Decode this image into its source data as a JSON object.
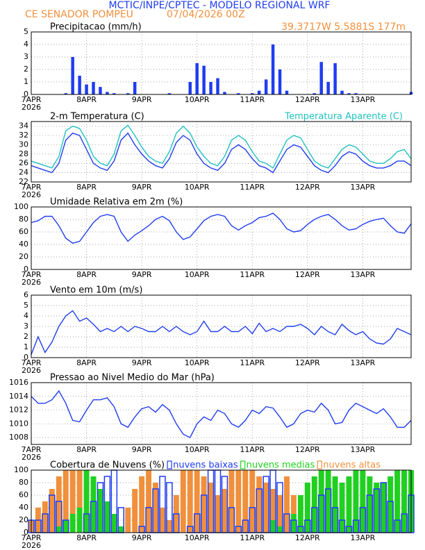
{
  "header": {
    "title": "MCTIC/INPE/CPTEC - MODELO REGIONAL WRF",
    "station": "CE SENADOR POMPEU",
    "run": "07/04/2026 00Z",
    "coords": "39.3717W 5.5881S 177m"
  },
  "time": {
    "x": [
      0,
      3,
      6,
      9,
      12,
      15,
      18,
      21,
      24,
      27,
      30,
      33,
      36,
      39,
      42,
      45,
      48,
      51,
      54,
      57,
      60,
      63,
      66,
      69,
      72,
      75,
      78,
      81,
      84,
      87,
      90,
      93,
      96,
      99,
      102,
      105,
      108,
      111,
      114,
      117,
      120,
      123,
      126,
      129,
      132,
      135,
      138,
      141,
      144,
      147,
      150,
      153,
      156,
      159,
      162,
      165
    ],
    "xlim": [
      0,
      165
    ],
    "xticks": [
      {
        "value": 0,
        "label": "7APR"
      },
      {
        "value": 24,
        "label": "8APR"
      },
      {
        "value": 48,
        "label": "9APR"
      },
      {
        "value": 72,
        "label": "10APR"
      },
      {
        "value": 96,
        "label": "11APR"
      },
      {
        "value": 120,
        "label": "12APR"
      },
      {
        "value": 144,
        "label": "13APR"
      }
    ],
    "year": "2026"
  },
  "chart_data": [
    {
      "type": "bar",
      "title": "Precipitacao (mm/h)",
      "color": "#1f3cf0",
      "ylim": [
        0,
        5
      ],
      "yticks": [
        0,
        1,
        2,
        3,
        4,
        5
      ],
      "grid": true,
      "values": [
        0,
        0,
        0,
        0,
        0,
        0.1,
        3.0,
        1.5,
        0.8,
        1.0,
        0.6,
        0.2,
        0.1,
        0,
        0.1,
        1.0,
        0,
        0,
        0,
        0,
        0.1,
        0,
        0,
        1.0,
        2.5,
        2.3,
        1.0,
        1.3,
        0.2,
        0,
        0.1,
        0,
        0.1,
        0.3,
        1.2,
        4.0,
        2.0,
        0.3,
        0,
        0,
        0,
        0.1,
        2.6,
        1.0,
        2.5,
        0.3,
        0.1,
        0.1,
        0,
        0,
        0,
        0,
        0,
        0,
        0,
        0.2
      ]
    },
    {
      "type": "line",
      "title": "2-m Temperatura (C)",
      "ylim": [
        22,
        35
      ],
      "yticks": [
        22,
        24,
        26,
        28,
        30,
        32,
        34
      ],
      "grid": true,
      "series": [
        {
          "color": "#1f3cf0",
          "values": [
            25.5,
            25,
            24.5,
            24,
            26,
            31,
            32.5,
            32,
            29,
            26,
            25,
            24.5,
            26.5,
            31,
            32.5,
            30,
            28,
            26.5,
            25.5,
            25,
            27,
            30.5,
            32,
            31,
            28,
            26,
            25,
            24.5,
            26,
            29,
            30,
            29,
            27,
            25.5,
            25,
            24,
            26.5,
            29,
            30,
            29.5,
            27.5,
            25.5,
            24.5,
            24,
            25.5,
            27.5,
            28.5,
            28,
            26.5,
            25.5,
            25,
            25,
            25.5,
            26.5,
            26.5,
            25.5
          ]
        },
        {
          "name": "Temperatura Aparente (C)",
          "color": "#20c0c0",
          "values": [
            26.5,
            26,
            25.5,
            25,
            27.5,
            33,
            34,
            33.5,
            31,
            27.5,
            26,
            25.5,
            28,
            33,
            34.2,
            32,
            29.5,
            27.5,
            26.5,
            26,
            28.5,
            32.5,
            34,
            32.5,
            29.5,
            27.5,
            26,
            25.5,
            27.5,
            31,
            32,
            31,
            28.5,
            26.5,
            26,
            25,
            28,
            31,
            32,
            31.5,
            29,
            26.5,
            25.5,
            25,
            27,
            29,
            30,
            29.5,
            28,
            26.5,
            26,
            26,
            27,
            28.5,
            29,
            27
          ]
        }
      ]
    },
    {
      "type": "line",
      "title": "Umidade Relativa em 2m (%)",
      "ylim": [
        0,
        100
      ],
      "yticks": [
        0,
        20,
        40,
        60,
        80,
        100
      ],
      "grid": true,
      "series": [
        {
          "color": "#1f3cf0",
          "values": [
            75,
            78,
            85,
            85,
            70,
            50,
            42,
            45,
            60,
            75,
            85,
            88,
            85,
            60,
            45,
            55,
            62,
            70,
            80,
            85,
            78,
            60,
            48,
            52,
            65,
            78,
            85,
            88,
            85,
            70,
            63,
            70,
            75,
            83,
            85,
            90,
            80,
            65,
            60,
            62,
            72,
            80,
            85,
            88,
            80,
            70,
            63,
            65,
            72,
            77,
            80,
            82,
            70,
            60,
            58,
            73
          ]
        }
      ]
    },
    {
      "type": "line",
      "title": "Vento em 10m (m/s)",
      "ylim": [
        0,
        6
      ],
      "yticks": [
        0,
        1,
        2,
        3,
        4,
        5,
        6
      ],
      "grid": true,
      "series": [
        {
          "color": "#1f3cf0",
          "values": [
            0.3,
            2,
            0.5,
            1.5,
            3,
            4,
            4.5,
            3.5,
            3.8,
            3.2,
            2.5,
            2.8,
            2.5,
            3,
            2.5,
            3,
            2.8,
            2.5,
            2.5,
            3,
            2.5,
            3,
            2.5,
            2.2,
            2.5,
            3.5,
            2.5,
            2.5,
            3,
            2.5,
            2.5,
            3,
            2.3,
            3.3,
            2.5,
            2.8,
            2.5,
            3,
            3,
            3.2,
            2.8,
            2.2,
            3,
            2.5,
            2.2,
            3.2,
            2.6,
            2.2,
            2.5,
            1.8,
            1.4,
            1.3,
            1.8,
            2.8,
            2.5,
            2.2
          ]
        }
      ]
    },
    {
      "type": "line",
      "title": "Pressao ao Nivel Medio do Mar (hPa)",
      "ylim": [
        1007,
        1016
      ],
      "yticks": [
        1008,
        1010,
        1012,
        1014,
        1016
      ],
      "grid": true,
      "series": [
        {
          "color": "#1f3cf0",
          "values": [
            1014,
            1013,
            1013,
            1013.5,
            1014.8,
            1013,
            1010.5,
            1010.3,
            1012,
            1013.5,
            1013.5,
            1013.8,
            1012.5,
            1010,
            1009.5,
            1011,
            1012.2,
            1012.5,
            1011.7,
            1012.8,
            1012,
            1010,
            1008.5,
            1008,
            1010,
            1011,
            1010.5,
            1012,
            1011.5,
            1010,
            1009.5,
            1010.5,
            1012,
            1011.5,
            1012.5,
            1012.3,
            1011,
            1009.5,
            1010,
            1011.5,
            1012,
            1011.7,
            1013,
            1012,
            1010,
            1010.2,
            1012,
            1013,
            1012.5,
            1012,
            1011.5,
            1012.2,
            1011,
            1009.5,
            1009.5,
            1010.5
          ]
        }
      ]
    },
    {
      "type": "bar",
      "title": "Cobertura de Nuvens (%)",
      "ylim": [
        0,
        100
      ],
      "yticks": [
        0,
        20,
        40,
        60,
        80,
        100
      ],
      "grid": true,
      "series": [
        {
          "name": "nuvens altas",
          "color": "#f0903c",
          "values": [
            20,
            40,
            50,
            70,
            90,
            100,
            100,
            100,
            80,
            30,
            10,
            0,
            0,
            0,
            40,
            70,
            90,
            100,
            80,
            40,
            20,
            60,
            100,
            100,
            100,
            90,
            80,
            60,
            70,
            100,
            100,
            100,
            100,
            90,
            80,
            70,
            60,
            90,
            60,
            20,
            0,
            0,
            0,
            0,
            0,
            0,
            0,
            0,
            0,
            0,
            0,
            0,
            0,
            0,
            0,
            0
          ]
        },
        {
          "name": "nuvens medias",
          "color": "#20d020",
          "values": [
            0,
            0,
            0,
            0,
            10,
            20,
            30,
            40,
            100,
            90,
            70,
            50,
            30,
            10,
            0,
            0,
            0,
            0,
            0,
            0,
            0,
            0,
            0,
            0,
            0,
            0,
            0,
            0,
            0,
            0,
            0,
            0,
            0,
            0,
            0,
            20,
            10,
            0,
            30,
            60,
            80,
            90,
            100,
            100,
            90,
            80,
            90,
            100,
            100,
            90,
            80,
            80,
            90,
            100,
            100,
            100
          ]
        },
        {
          "name": "nuvens baixas",
          "color": "#1f3cf0",
          "outline": true,
          "values": [
            20,
            20,
            30,
            60,
            50,
            20,
            0,
            0,
            30,
            50,
            80,
            90,
            100,
            40,
            0,
            0,
            10,
            40,
            70,
            90,
            80,
            30,
            0,
            10,
            30,
            60,
            100,
            100,
            90,
            40,
            10,
            20,
            40,
            70,
            90,
            100,
            80,
            30,
            20,
            10,
            20,
            40,
            60,
            70,
            40,
            20,
            10,
            20,
            40,
            60,
            70,
            80,
            50,
            20,
            30,
            60
          ]
        }
      ]
    }
  ]
}
